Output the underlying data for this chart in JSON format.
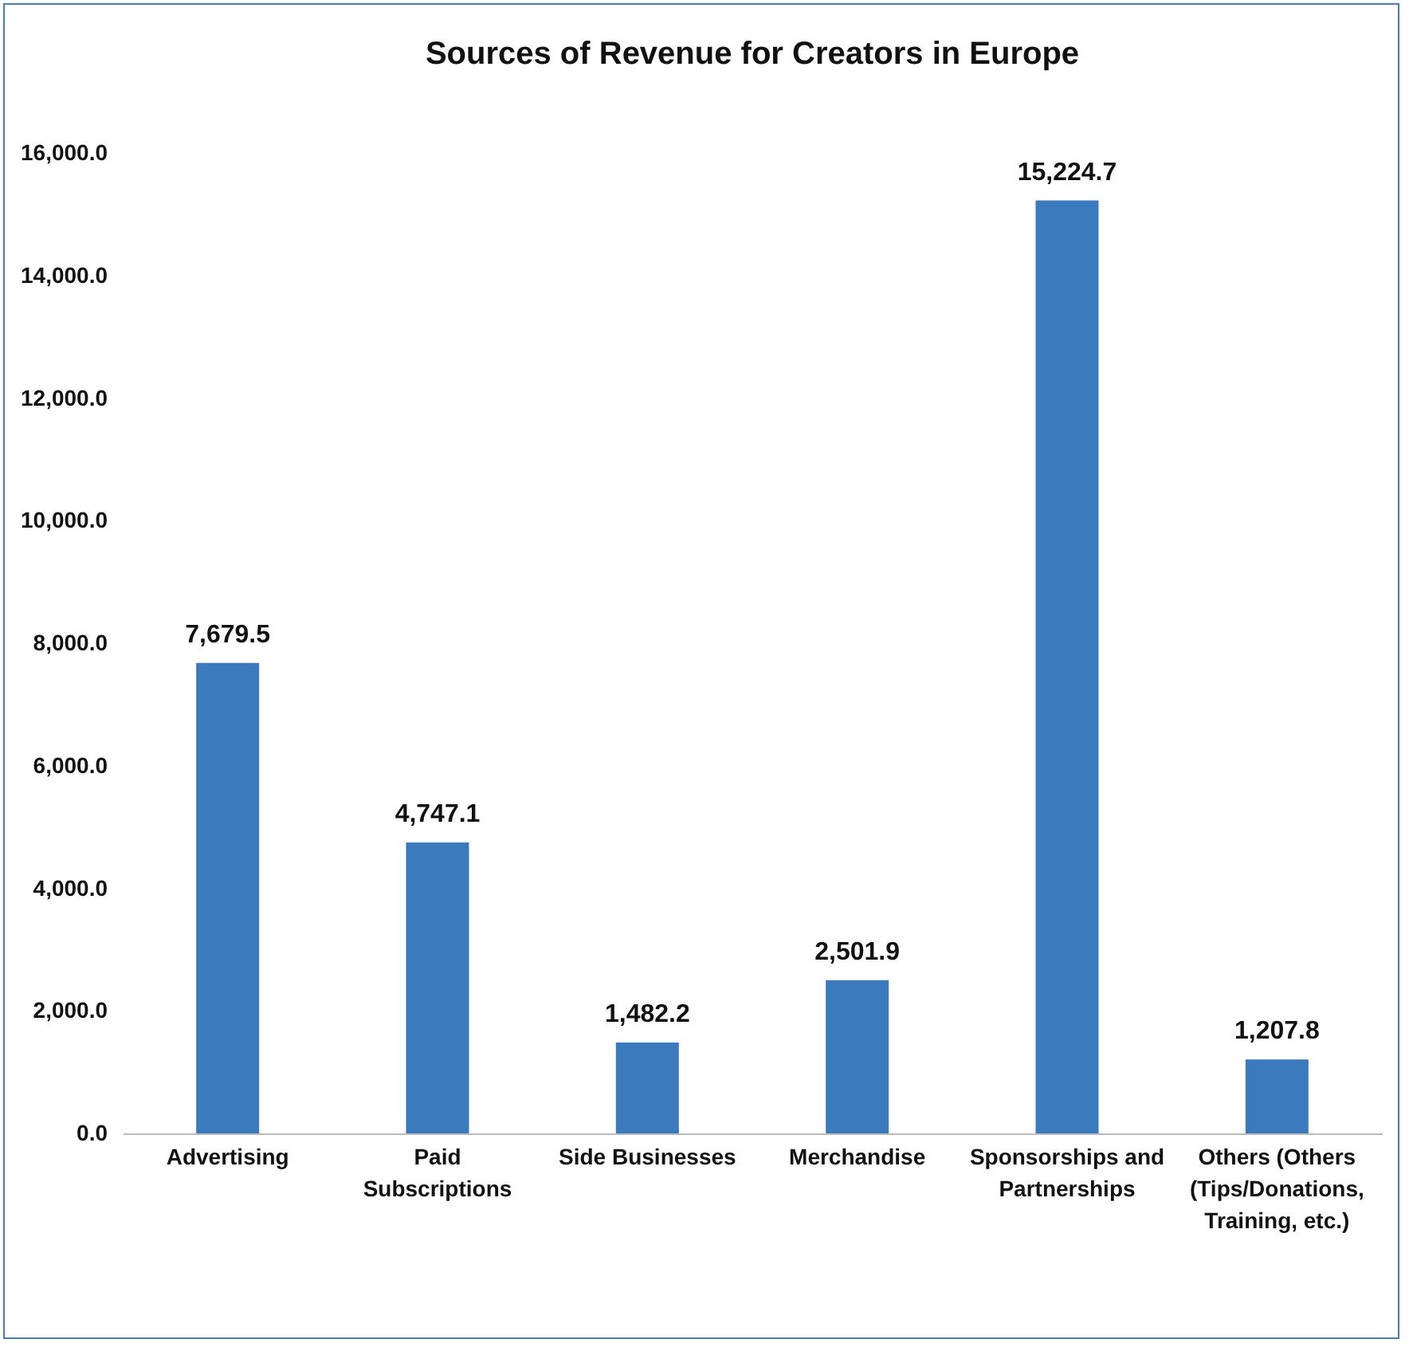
{
  "chart_data": {
    "type": "bar",
    "title": "Sources of Revenue for Creators in Europe",
    "categories": [
      "Advertising",
      "Paid Subscriptions",
      "Side Businesses",
      "Merchandise",
      "Sponsorships and Partnerships",
      "Others (Others (Tips/Donations, Training, etc.)"
    ],
    "values": [
      7679.5,
      4747.1,
      1482.2,
      2501.9,
      15224.7,
      1207.8
    ],
    "color": "#3a7abd",
    "ylim": [
      0,
      16000
    ],
    "yticks": [
      {
        "value": 0,
        "label": "0.0"
      },
      {
        "value": 2000,
        "label": "2,000.0"
      },
      {
        "value": 4000,
        "label": "4,000.0"
      },
      {
        "value": 6000,
        "label": "6,000.0"
      },
      {
        "value": 8000,
        "label": "8,000.0"
      },
      {
        "value": 10000,
        "label": "10,000.0"
      },
      {
        "value": 12000,
        "label": "12,000.0"
      },
      {
        "value": 14000,
        "label": "14,000.0"
      },
      {
        "value": 16000,
        "label": "16,000.0"
      }
    ],
    "grid": false,
    "value_labels": [
      "7,679.5",
      "4,747.1",
      "1,482.2",
      "2,501.9",
      "15,224.7",
      "1,207.8"
    ]
  }
}
